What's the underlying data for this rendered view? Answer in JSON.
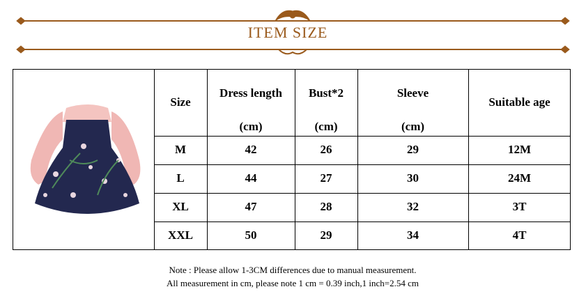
{
  "header": {
    "title": "ITEM SIZE"
  },
  "table": {
    "columns": [
      {
        "name": "Size"
      },
      {
        "name": "Dress length",
        "unit": "(cm)"
      },
      {
        "name": "Bust*2",
        "unit": "(cm)"
      },
      {
        "name": "Sleeve",
        "unit": "(cm)"
      },
      {
        "name": "Suitable age"
      }
    ],
    "rows": [
      [
        "M",
        "42",
        "26",
        "29",
        "12M"
      ],
      [
        "L",
        "44",
        "27",
        "30",
        "24M"
      ],
      [
        "XL",
        "47",
        "28",
        "32",
        "3T"
      ],
      [
        "XXL",
        "50",
        "29",
        "34",
        "4T"
      ]
    ]
  },
  "notes": [
    "Note :  Please allow 1-3CM differences due to manual measurement.",
    "All measurement in cm, please note 1 cm = 0.39 inch,1 inch=2.54 cm"
  ]
}
